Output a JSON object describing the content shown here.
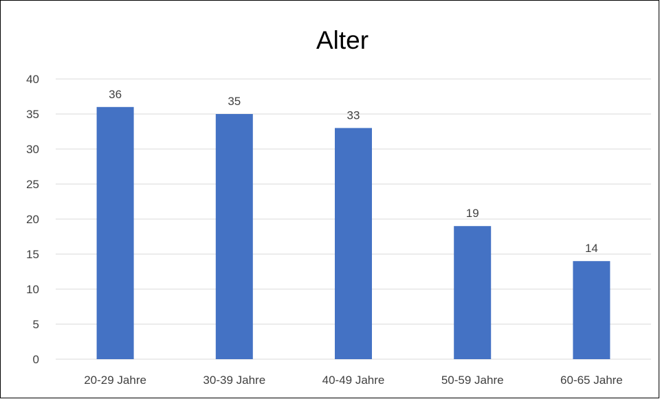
{
  "chart_data": {
    "type": "bar",
    "title": "Alter",
    "xlabel": "",
    "ylabel": "",
    "categories": [
      "20-29 Jahre",
      "30-39 Jahre",
      "40-49 Jahre",
      "50-59 Jahre",
      "60-65 Jahre"
    ],
    "series": [
      {
        "values": [
          36,
          35,
          33,
          19,
          14
        ]
      }
    ],
    "ylim": [
      0,
      40
    ],
    "ytick_step": 5,
    "ytick_labels": [
      "0",
      "5",
      "10",
      "15",
      "20",
      "25",
      "30",
      "35",
      "40"
    ],
    "data_labels": [
      "36",
      "35",
      "33",
      "19",
      "14"
    ],
    "grid": true,
    "legend": "none",
    "colors": {
      "bar": "#4472C4",
      "grid": "#D9D9D9",
      "text": "#404040",
      "title": "#000000"
    }
  }
}
